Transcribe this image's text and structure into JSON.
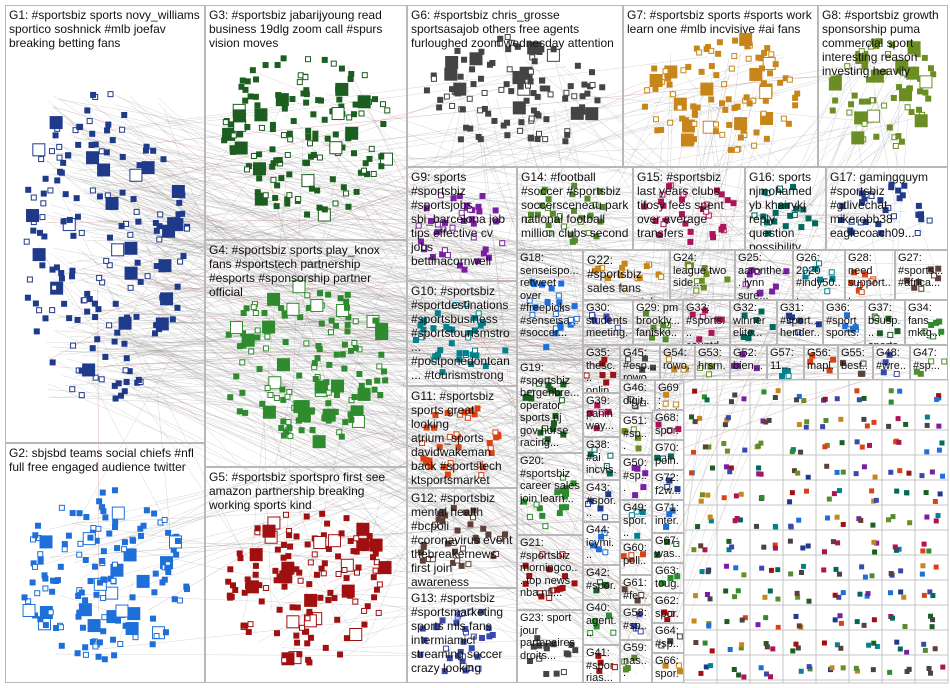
{
  "groups": [
    {
      "label": "G1: #sportsbiz sports novy_williams sportico soshnick #mlb joefav breaking betting fans"
    },
    {
      "label": "G2: sbjsbd teams social chiefs #nfl full free engaged audience twitter"
    },
    {
      "label": "G3: #sportsbiz jabarijyoung read business 19dlg zoom call #spurs vision moves"
    },
    {
      "label": "G4: #sportsbiz sports play_knox fans #sportstech partnership #esports #sponsorship partner official"
    },
    {
      "label": "G5: #sportsbiz sportspro first see amazon partnership breaking working sports kind"
    },
    {
      "label": "G6: #sportsbiz chris_grosse sportsasajob others free agents furloughed zoom wednesday attention"
    },
    {
      "label": "G7: #sportsbiz sports #sports work learn one #mlb incvisive #ai fans"
    },
    {
      "label": "G8: #sportsbiz growth sponsorship puma commercial sport interesting reason investing heavily"
    },
    {
      "label": "G9: sports #sportsbiz #sportsjobs sbi_barcelona job tips effective cv jobs bettinacornwell"
    },
    {
      "label": "G10: #sportsbiz #sportdestinations #sportsbusiness #sportstourismstro... #postponedontcan... #tourismstrong tournament atptour..."
    },
    {
      "label": "G11: #sportsbiz sports great looking atrium_sports davidwakeman back #sportstech ktsportsmarket really"
    },
    {
      "label": "G12: #sportsbiz mental health #bcpoli #coronavirus event thebreakernews first join awareness"
    },
    {
      "label": "G13: #sportsbiz #sportsmarketing sports mls fans intermiamicf streaming soccer crazy looking"
    },
    {
      "label": "G14: #football #soccer #sportsbiz soccersceneau park national football million clubs second"
    },
    {
      "label": "G15: #sportsbiz last years clubs tifosy fees spent over average transfers"
    },
    {
      "label": "G16: sports njmohamed yb khairykj reply question possibility mosti looking technology"
    },
    {
      "label": "G17: gamingguym #sportsbiz #gtlivechat mikerobb38 eaglecoach09..."
    },
    {
      "label": "G18: senseispo... retweet over #freepicks #senseisa... #soccer..."
    },
    {
      "label": "G19: #sportsbiz bergenbre... operator sports nj gov horse racing..."
    },
    {
      "label": "G20: #sportsbiz career sales join learn..."
    },
    {
      "label": "G21: #sportsbiz morningco... top news nba nfl..."
    },
    {
      "label": "G23: sport jour partenaires droits..."
    },
    {
      "label": "G22: #sportsbiz sales fans canes social..."
    },
    {
      "label": "G24: league two side..."
    },
    {
      "label": "G25: aaronthe... lynn sure..."
    },
    {
      "label": "G26: 2020 #indy50..."
    },
    {
      "label": "G28: need support..."
    },
    {
      "label": "G27: #sports... #africa..."
    },
    {
      "label": "G30: students meeting..."
    },
    {
      "label": "G29: pm brookly... fanisko..."
    },
    {
      "label": "G33: #sports... countd..."
    },
    {
      "label": "G32: winner elite..."
    },
    {
      "label": "G31: #sport... hender..."
    },
    {
      "label": "G36: #sport sports..."
    },
    {
      "label": "G37: bsusp... sports..."
    },
    {
      "label": "G34: fans mktg..."
    },
    {
      "label": "G35: thesc... onlin..."
    },
    {
      "label": "G45: #esp... rowo..."
    },
    {
      "label": "G54: rowo..."
    },
    {
      "label": "G53: hrsm..."
    },
    {
      "label": "G52: bien..."
    },
    {
      "label": "G57: 11..."
    },
    {
      "label": "G56: mapl..."
    },
    {
      "label": "G55: best..."
    },
    {
      "label": "G48: #wre..."
    },
    {
      "label": "G47: #sp..."
    },
    {
      "label": "G39: panin way..."
    },
    {
      "label": "G38: #ai incvis..."
    },
    {
      "label": "G43: #spor..."
    },
    {
      "label": "G44: icymi..."
    },
    {
      "label": "G42: #spor..."
    },
    {
      "label": "G40: agent..."
    },
    {
      "label": "G41: #spor rias..."
    },
    {
      "label": "G46: digit..."
    },
    {
      "label": "G69: kevi..."
    },
    {
      "label": "G51: #sp..."
    },
    {
      "label": "G50: #sp..."
    },
    {
      "label": "G49: spor..."
    },
    {
      "label": "G60: poll..."
    },
    {
      "label": "G61: #fe..."
    },
    {
      "label": "G58: #sp..."
    },
    {
      "label": "G59: nas..."
    },
    {
      "label": "G68: spor..."
    },
    {
      "label": "G70: poin..."
    },
    {
      "label": "G72: f2w..."
    },
    {
      "label": "G71: inter..."
    },
    {
      "label": "G67: was..."
    },
    {
      "label": "G63: toug..."
    },
    {
      "label": "G62: spor..."
    },
    {
      "label": "G64: #sp..."
    },
    {
      "label": "G66: spor..."
    }
  ]
}
